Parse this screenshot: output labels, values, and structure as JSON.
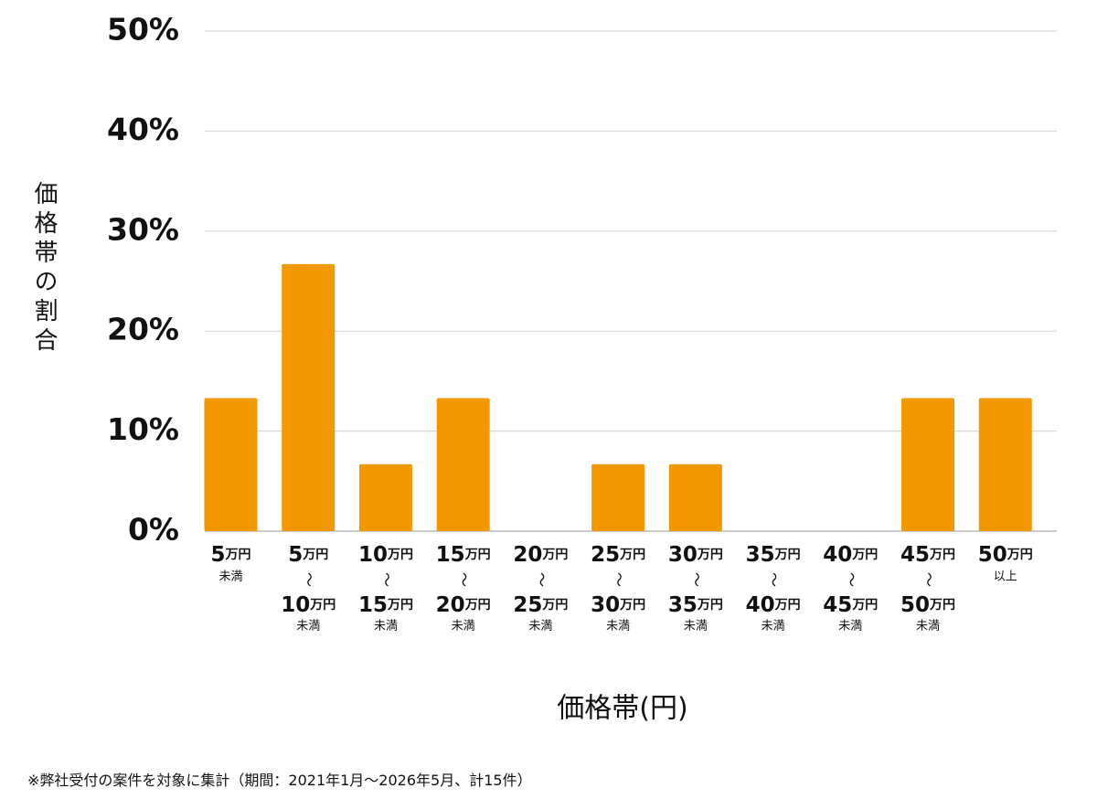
{
  "chart_data": {
    "type": "bar",
    "y_axis_label": "価格帯の割合",
    "x_axis_label": "価格帯(円)",
    "footnote": "※弊社受付の案件を対象に集計（期間：2021年1月～2026年5月、計15件）",
    "categories": [
      [
        "5万円",
        "未満"
      ],
      [
        "5万円",
        "～",
        "10万円",
        "未満"
      ],
      [
        "10万円",
        "～",
        "15万円",
        "未満"
      ],
      [
        "15万円",
        "～",
        "20万円",
        "未満"
      ],
      [
        "20万円",
        "～",
        "25万円",
        "未満"
      ],
      [
        "25万円",
        "～",
        "30万円",
        "未満"
      ],
      [
        "30万円",
        "～",
        "35万円",
        "未満"
      ],
      [
        "35万円",
        "～",
        "40万円",
        "未満"
      ],
      [
        "40万円",
        "～",
        "45万円",
        "未満"
      ],
      [
        "45万円",
        "～",
        "50万円",
        "未満"
      ],
      [
        "50万円",
        "以上"
      ]
    ],
    "values": [
      13.3,
      26.7,
      6.7,
      13.3,
      0,
      6.7,
      6.7,
      0,
      0,
      13.3,
      13.3
    ],
    "color": "#f39800",
    "ylim": [
      0,
      50
    ],
    "yticks": [
      {
        "value": 0,
        "label": "0%"
      },
      {
        "value": 10,
        "label": "10%"
      },
      {
        "value": 20,
        "label": "20%"
      },
      {
        "value": 30,
        "label": "30%"
      },
      {
        "value": 40,
        "label": "40%"
      },
      {
        "value": 50,
        "label": "50%"
      }
    ],
    "grid": true
  }
}
